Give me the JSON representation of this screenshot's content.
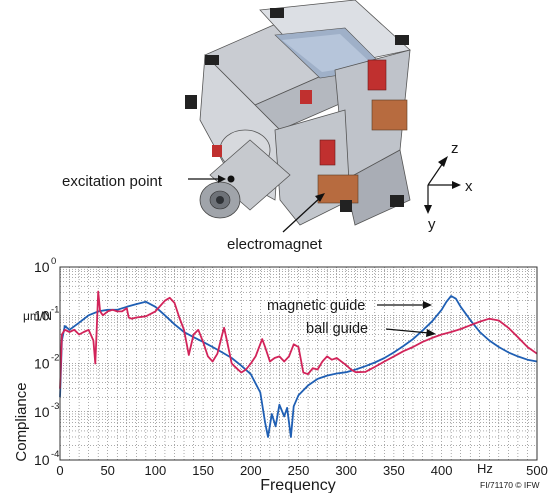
{
  "illustration": {
    "excitation_label": "excitation point",
    "electromagnet_label": "electromagnet",
    "axes": {
      "z": "z",
      "x": "x",
      "y": "y"
    }
  },
  "chart_data": {
    "type": "line",
    "title": "",
    "xlabel": "Frequency",
    "ylabel": "Compliance",
    "yunit": "μm/N",
    "xunit": "Hz",
    "xlim": [
      0,
      500
    ],
    "ylim": [
      0.0001,
      1
    ],
    "yscale": "log",
    "grid": true,
    "xticks": [
      0,
      50,
      100,
      150,
      200,
      250,
      300,
      350,
      400,
      450,
      500
    ],
    "yticks": [
      {
        "value": 1,
        "base": "10",
        "exp": "0"
      },
      {
        "value": 0.1,
        "base": "10",
        "exp": "-1"
      },
      {
        "value": 0.01,
        "base": "10",
        "exp": "-2"
      },
      {
        "value": 0.001,
        "base": "10",
        "exp": "-3"
      },
      {
        "value": 0.0001,
        "base": "10",
        "exp": "-4"
      }
    ],
    "series": [
      {
        "name": "magnetic guide",
        "color": "#1f5fb4",
        "points": [
          [
            0,
            0.002
          ],
          [
            2,
            0.03
          ],
          [
            5,
            0.06
          ],
          [
            10,
            0.05
          ],
          [
            20,
            0.07
          ],
          [
            30,
            0.1
          ],
          [
            40,
            0.12
          ],
          [
            50,
            0.13
          ],
          [
            60,
            0.13
          ],
          [
            70,
            0.15
          ],
          [
            80,
            0.17
          ],
          [
            90,
            0.19
          ],
          [
            100,
            0.15
          ],
          [
            110,
            0.1
          ],
          [
            120,
            0.065
          ],
          [
            130,
            0.045
          ],
          [
            140,
            0.035
          ],
          [
            150,
            0.028
          ],
          [
            160,
            0.022
          ],
          [
            170,
            0.017
          ],
          [
            180,
            0.013
          ],
          [
            190,
            0.009
          ],
          [
            200,
            0.006
          ],
          [
            210,
            0.0025
          ],
          [
            215,
            0.0006
          ],
          [
            218,
            0.0003
          ],
          [
            222,
            0.0009
          ],
          [
            226,
            0.0005
          ],
          [
            230,
            0.0014
          ],
          [
            235,
            0.0008
          ],
          [
            238,
            0.0012
          ],
          [
            242,
            0.0003
          ],
          [
            245,
            0.0013
          ],
          [
            250,
            0.0022
          ],
          [
            260,
            0.0035
          ],
          [
            270,
            0.0048
          ],
          [
            280,
            0.0056
          ],
          [
            290,
            0.0062
          ],
          [
            300,
            0.0066
          ],
          [
            310,
            0.0075
          ],
          [
            320,
            0.0088
          ],
          [
            330,
            0.0105
          ],
          [
            340,
            0.013
          ],
          [
            350,
            0.017
          ],
          [
            360,
            0.023
          ],
          [
            370,
            0.032
          ],
          [
            380,
            0.048
          ],
          [
            390,
            0.075
          ],
          [
            400,
            0.13
          ],
          [
            405,
            0.19
          ],
          [
            410,
            0.25
          ],
          [
            415,
            0.22
          ],
          [
            420,
            0.15
          ],
          [
            430,
            0.08
          ],
          [
            440,
            0.045
          ],
          [
            450,
            0.03
          ],
          [
            460,
            0.022
          ],
          [
            470,
            0.017
          ],
          [
            480,
            0.014
          ],
          [
            490,
            0.012
          ],
          [
            500,
            0.011
          ]
        ]
      },
      {
        "name": "ball guide",
        "color": "#d2245a",
        "points": [
          [
            0,
            0.003
          ],
          [
            2,
            0.04
          ],
          [
            5,
            0.05
          ],
          [
            10,
            0.045
          ],
          [
            15,
            0.05
          ],
          [
            20,
            0.04
          ],
          [
            25,
            0.045
          ],
          [
            30,
            0.05
          ],
          [
            35,
            0.03
          ],
          [
            37,
            0.01
          ],
          [
            39,
            0.09
          ],
          [
            40,
            0.31
          ],
          [
            42,
            0.12
          ],
          [
            45,
            0.1
          ],
          [
            50,
            0.12
          ],
          [
            55,
            0.13
          ],
          [
            60,
            0.12
          ],
          [
            65,
            0.12
          ],
          [
            70,
            0.14
          ],
          [
            72,
            0.09
          ],
          [
            75,
            0.085
          ],
          [
            80,
            0.09
          ],
          [
            90,
            0.095
          ],
          [
            100,
            0.12
          ],
          [
            110,
            0.2
          ],
          [
            115,
            0.23
          ],
          [
            120,
            0.18
          ],
          [
            125,
            0.09
          ],
          [
            130,
            0.05
          ],
          [
            135,
            0.015
          ],
          [
            140,
            0.04
          ],
          [
            145,
            0.05
          ],
          [
            150,
            0.028
          ],
          [
            155,
            0.014
          ],
          [
            160,
            0.011
          ],
          [
            165,
            0.016
          ],
          [
            170,
            0.04
          ],
          [
            172,
            0.055
          ],
          [
            175,
            0.03
          ],
          [
            180,
            0.01
          ],
          [
            185,
            0.008
          ],
          [
            190,
            0.0065
          ],
          [
            195,
            0.0075
          ],
          [
            200,
            0.01
          ],
          [
            205,
            0.014
          ],
          [
            208,
            0.02
          ],
          [
            212,
            0.032
          ],
          [
            215,
            0.022
          ],
          [
            220,
            0.011
          ],
          [
            225,
            0.013
          ],
          [
            230,
            0.014
          ],
          [
            235,
            0.011
          ],
          [
            240,
            0.014
          ],
          [
            245,
            0.025
          ],
          [
            250,
            0.022
          ],
          [
            255,
            0.0065
          ],
          [
            260,
            0.006
          ],
          [
            265,
            0.008
          ],
          [
            270,
            0.0075
          ],
          [
            275,
            0.011
          ],
          [
            280,
            0.014
          ],
          [
            285,
            0.012
          ],
          [
            290,
            0.013
          ],
          [
            300,
            0.0092
          ],
          [
            305,
            0.0075
          ],
          [
            310,
            0.0066
          ],
          [
            320,
            0.0067
          ],
          [
            330,
            0.0085
          ],
          [
            340,
            0.011
          ],
          [
            350,
            0.014
          ],
          [
            360,
            0.018
          ],
          [
            370,
            0.022
          ],
          [
            380,
            0.028
          ],
          [
            390,
            0.034
          ],
          [
            400,
            0.04
          ],
          [
            410,
            0.045
          ],
          [
            420,
            0.052
          ],
          [
            430,
            0.062
          ],
          [
            440,
            0.074
          ],
          [
            450,
            0.085
          ],
          [
            460,
            0.078
          ],
          [
            470,
            0.055
          ],
          [
            480,
            0.035
          ],
          [
            490,
            0.022
          ],
          [
            500,
            0.016
          ]
        ]
      }
    ],
    "legend": [
      {
        "label": "magnetic guide"
      },
      {
        "label": "ball guide"
      }
    ],
    "credit": "FI/71170 © IFW"
  }
}
